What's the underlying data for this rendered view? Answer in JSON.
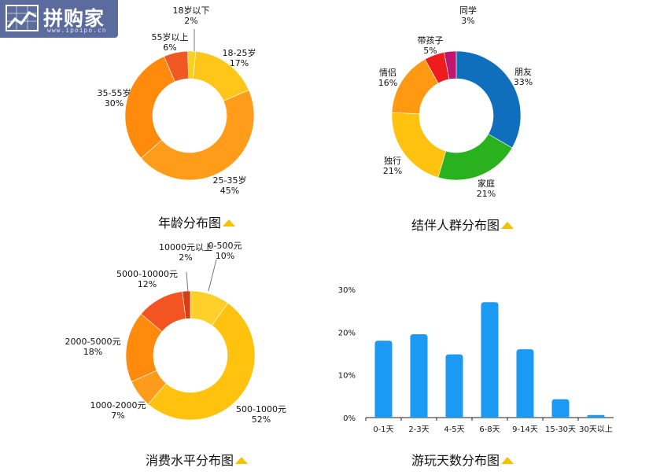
{
  "logo": {
    "text": "拼购家",
    "subtext": "www.ipoipo.cn",
    "icon": "chart-logo-icon"
  },
  "chart_data": [
    {
      "type": "pie",
      "title": "年龄分布图",
      "slices": [
        {
          "label": "18岁以下",
          "pct": "2%",
          "value": 2,
          "color": "#f5d21d"
        },
        {
          "label": "18-25岁",
          "pct": "17%",
          "value": 17,
          "color": "#ffc61a"
        },
        {
          "label": "25-35岁",
          "pct": "45%",
          "value": 45,
          "color": "#ff9d1a"
        },
        {
          "label": "35-55岁",
          "pct": "30%",
          "value": 30,
          "color": "#ff8a0c"
        },
        {
          "label": "55岁以上",
          "pct": "6%",
          "value": 6,
          "color": "#f05a22"
        }
      ]
    },
    {
      "type": "pie",
      "title": "结伴人群分布图",
      "slices": [
        {
          "label": "朋友",
          "pct": "33%",
          "value": 33,
          "color": "#0f6fbd"
        },
        {
          "label": "家庭",
          "pct": "21%",
          "value": 21,
          "color": "#2ab21e"
        },
        {
          "label": "独行",
          "pct": "21%",
          "value": 21,
          "color": "#ffc20e"
        },
        {
          "label": "情侣",
          "pct": "16%",
          "value": 16,
          "color": "#ff9912"
        },
        {
          "label": "带孩子",
          "pct": "5%",
          "value": 5,
          "color": "#ee1c1c"
        },
        {
          "label": "同学",
          "pct": "3%",
          "value": 3,
          "color": "#c0166e"
        }
      ]
    },
    {
      "type": "pie",
      "title": "消费水平分布图",
      "slices": [
        {
          "label": "0-500元",
          "pct": "10%",
          "value": 10,
          "color": "#ffd02a"
        },
        {
          "label": "500-1000元",
          "pct": "52%",
          "value": 52,
          "color": "#ffc20e"
        },
        {
          "label": "1000-2000元",
          "pct": "7%",
          "value": 7,
          "color": "#ff9b1a"
        },
        {
          "label": "2000-5000元",
          "pct": "18%",
          "value": 18,
          "color": "#ff8a0c"
        },
        {
          "label": "5000-10000元",
          "pct": "12%",
          "value": 12,
          "color": "#f25522"
        },
        {
          "label": "10000元以上",
          "pct": "2%",
          "value": 2,
          "color": "#d93d15"
        }
      ]
    },
    {
      "type": "bar",
      "title": "游玩天数分布图",
      "categories": [
        "0-1天",
        "2-3天",
        "4-5天",
        "6-8天",
        "9-14天",
        "15-30天",
        "30天以上"
      ],
      "values": [
        18,
        19.5,
        14.8,
        27,
        16,
        4.3,
        0.6
      ],
      "yticks": [
        "0%",
        "10%",
        "20%",
        "30%"
      ],
      "ylim": [
        0,
        30
      ],
      "color": "#1a9af2"
    }
  ]
}
